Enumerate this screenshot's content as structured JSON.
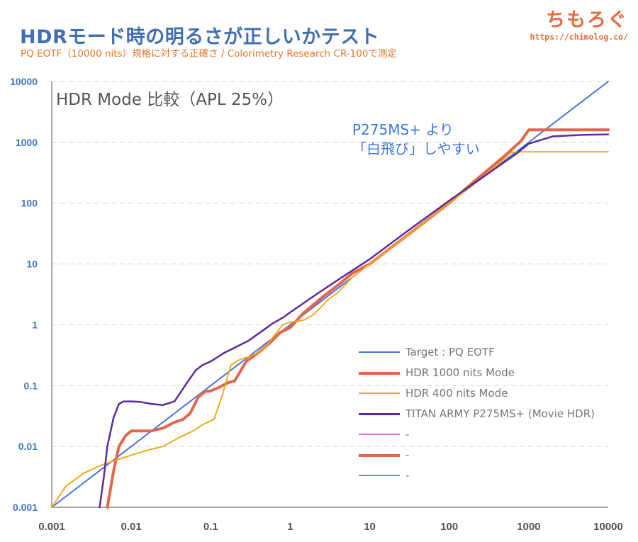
{
  "header": {
    "title": "HDRモード時の明るさが正しいかテスト",
    "subtitle": "PQ EOTF（10000 nits）規格に対する正確さ / Colorimetry Research CR-100で測定",
    "brand_logo": "ちもろぐ",
    "brand_url": "https://chimolog.co/"
  },
  "chart_data": {
    "type": "line",
    "title": "HDR Mode 比較（APL 25%）",
    "xlabel": "",
    "ylabel": "",
    "x_scale": "log",
    "y_scale": "log",
    "xlim": [
      0.001,
      10000
    ],
    "ylim": [
      0.001,
      10000
    ],
    "x_ticks": [
      "0.001",
      "0.01",
      "0.1",
      "1",
      "10",
      "100",
      "1000",
      "10000"
    ],
    "y_ticks": [
      "0.001",
      "0.01",
      "0.1",
      "1",
      "10",
      "100",
      "1000",
      "10000"
    ],
    "grid": "horizontal-dashed",
    "legend_position": "bottom-right",
    "annotation": [
      "P275MS+ より",
      "「白飛び」しやすい"
    ],
    "series": [
      {
        "name": "Target : PQ EOTF",
        "color": "#4a72e0",
        "width": 2,
        "x": [
          0.001,
          10000
        ],
        "y": [
          0.001,
          10000
        ]
      },
      {
        "name": "HDR 1000 nits Mode",
        "color": "#e0674a",
        "width": 4,
        "x": [
          0.005,
          0.006,
          0.007,
          0.0085,
          0.01,
          0.013,
          0.018,
          0.025,
          0.035,
          0.045,
          0.055,
          0.07,
          0.085,
          0.1,
          0.13,
          0.16,
          0.2,
          0.28,
          0.4,
          0.55,
          0.75,
          1,
          1.5,
          2.5,
          4,
          6,
          10,
          20,
          50,
          100,
          200,
          500,
          800,
          1000,
          1500,
          3000,
          10000
        ],
        "y": [
          0.001,
          0.004,
          0.01,
          0.015,
          0.018,
          0.018,
          0.018,
          0.02,
          0.025,
          0.028,
          0.035,
          0.065,
          0.08,
          0.082,
          0.095,
          0.11,
          0.12,
          0.25,
          0.35,
          0.5,
          0.75,
          0.9,
          1.6,
          2.8,
          4.5,
          7,
          10,
          20,
          50,
          100,
          220,
          600,
          1050,
          1600,
          1600,
          1600,
          1600
        ]
      },
      {
        "name": "HDR 400 nits Mode",
        "color": "#f2a91f",
        "width": 2,
        "x": [
          0.001,
          0.0015,
          0.0025,
          0.004,
          0.006,
          0.01,
          0.015,
          0.025,
          0.04,
          0.06,
          0.08,
          0.11,
          0.14,
          0.18,
          0.22,
          0.3,
          0.4,
          0.5,
          0.65,
          0.8,
          1,
          1.5,
          2,
          3,
          4,
          6,
          10,
          20,
          50,
          100,
          200,
          400,
          600,
          800,
          1000,
          3000,
          10000
        ],
        "y": [
          0.001,
          0.0022,
          0.0036,
          0.0048,
          0.0058,
          0.0072,
          0.0085,
          0.01,
          0.014,
          0.018,
          0.023,
          0.028,
          0.07,
          0.22,
          0.26,
          0.3,
          0.35,
          0.45,
          0.7,
          1,
          1.1,
          1.2,
          1.5,
          2.6,
          3.4,
          6,
          10,
          20,
          50,
          100,
          200,
          420,
          680,
          700,
          700,
          700,
          700
        ]
      },
      {
        "name": "TITAN ARMY P275MS+ (Movie HDR)",
        "color": "#5a2b9e",
        "width": 2.5,
        "x": [
          0.004,
          0.0045,
          0.005,
          0.006,
          0.007,
          0.008,
          0.01,
          0.013,
          0.018,
          0.025,
          0.035,
          0.05,
          0.065,
          0.08,
          0.1,
          0.15,
          0.2,
          0.3,
          0.45,
          0.6,
          0.8,
          1,
          2,
          4,
          10,
          30,
          100,
          300,
          700,
          1000,
          2000,
          5000,
          10000
        ],
        "y": [
          0.001,
          0.003,
          0.01,
          0.03,
          0.05,
          0.055,
          0.055,
          0.054,
          0.05,
          0.048,
          0.055,
          0.11,
          0.18,
          0.22,
          0.25,
          0.35,
          0.42,
          0.55,
          0.8,
          1.05,
          1.3,
          1.6,
          3,
          5.5,
          12,
          35,
          110,
          300,
          650,
          950,
          1250,
          1330,
          1350
        ]
      },
      {
        "name": "-",
        "color": "#dd6ddd",
        "width": 2,
        "x": [],
        "y": []
      },
      {
        "name": "-",
        "color": "#e0674a",
        "width": 4,
        "x": [],
        "y": []
      },
      {
        "name": "-",
        "color": "#7891ad",
        "width": 2,
        "x": [],
        "y": []
      }
    ]
  }
}
